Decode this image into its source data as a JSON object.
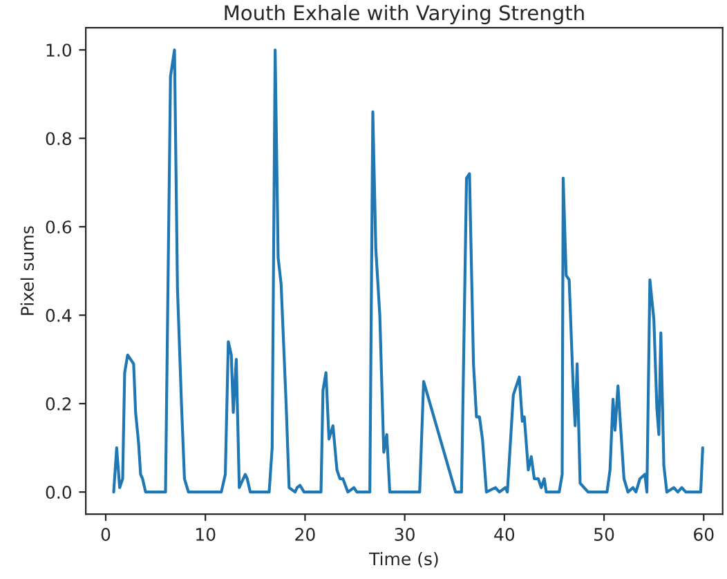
{
  "chart_data": {
    "type": "line",
    "title": "Mouth Exhale with Varying Strength",
    "xlabel": "Time (s)",
    "ylabel": "Pixel sums",
    "series": [
      {
        "color": "#1f77b4",
        "x": [
          0.8,
          1.1,
          1.4,
          1.7,
          1.9,
          2.2,
          2.5,
          2.8,
          3.0,
          3.3,
          3.5,
          3.7,
          4.0,
          6.0,
          6.5,
          6.9,
          7.2,
          7.6,
          7.9,
          8.3,
          10.2,
          11.6,
          12.0,
          12.3,
          12.6,
          12.8,
          13.1,
          13.4,
          14.0,
          14.2,
          14.5,
          16.4,
          16.7,
          17.0,
          17.3,
          17.6,
          18.1,
          18.4,
          19.0,
          19.2,
          19.5,
          19.9,
          21.6,
          21.8,
          22.1,
          22.4,
          22.8,
          23.2,
          23.5,
          23.8,
          24.3,
          24.9,
          25.2,
          26.5,
          26.8,
          27.1,
          27.5,
          27.9,
          28.2,
          28.5,
          31.5,
          31.9,
          35.1,
          35.7,
          36.2,
          36.5,
          36.9,
          37.2,
          37.5,
          37.8,
          38.2,
          39.1,
          39.5,
          40.1,
          40.3,
          40.9,
          41.5,
          41.8,
          42.0,
          42.4,
          42.7,
          43.0,
          43.4,
          43.7,
          44.0,
          44.2,
          45.5,
          45.8,
          45.9,
          46.2,
          46.5,
          46.9,
          47.1,
          47.3,
          47.6,
          48.0,
          48.4,
          50.3,
          50.6,
          50.9,
          51.1,
          51.4,
          52.0,
          52.4,
          52.9,
          53.2,
          53.6,
          54.1,
          54.3,
          54.6,
          55.0,
          55.3,
          55.5,
          55.7,
          56.0,
          56.3,
          57.0,
          57.4,
          57.8,
          58.2,
          59.7,
          59.9
        ],
        "values": [
          0.0,
          0.1,
          0.01,
          0.03,
          0.27,
          0.31,
          0.3,
          0.29,
          0.18,
          0.11,
          0.04,
          0.03,
          0.0,
          0.0,
          0.94,
          1.0,
          0.46,
          0.2,
          0.03,
          0.0,
          0.0,
          0.0,
          0.04,
          0.34,
          0.31,
          0.18,
          0.3,
          0.01,
          0.04,
          0.03,
          0.0,
          0.0,
          0.1,
          1.0,
          0.53,
          0.47,
          0.2,
          0.01,
          0.0,
          0.01,
          0.015,
          0.0,
          0.0,
          0.23,
          0.27,
          0.12,
          0.15,
          0.05,
          0.03,
          0.03,
          0.0,
          0.01,
          0.0,
          0.0,
          0.86,
          0.55,
          0.4,
          0.09,
          0.13,
          0.0,
          0.0,
          0.25,
          0.0,
          0.0,
          0.71,
          0.72,
          0.29,
          0.17,
          0.17,
          0.12,
          0.0,
          0.01,
          0.0,
          0.01,
          0.0,
          0.22,
          0.26,
          0.16,
          0.17,
          0.05,
          0.08,
          0.03,
          0.03,
          0.01,
          0.03,
          0.0,
          0.0,
          0.04,
          0.71,
          0.49,
          0.48,
          0.24,
          0.15,
          0.29,
          0.02,
          0.01,
          0.0,
          0.0,
          0.05,
          0.21,
          0.14,
          0.24,
          0.03,
          0.0,
          0.01,
          0.0,
          0.03,
          0.04,
          0.0,
          0.48,
          0.39,
          0.19,
          0.13,
          0.36,
          0.06,
          0.0,
          0.01,
          0.0,
          0.01,
          0.0,
          0.0,
          0.1
        ]
      }
    ],
    "xlim": [
      -2,
      61.9
    ],
    "ylim": [
      -0.05,
      1.05
    ],
    "xticks": [
      0,
      10,
      20,
      30,
      40,
      50,
      60
    ],
    "yticks": [
      {
        "value": 0,
        "label": "0.0"
      },
      {
        "value": 0.2,
        "label": "0.2"
      },
      {
        "value": 0.4,
        "label": "0.4"
      },
      {
        "value": 0.6,
        "label": "0.6"
      },
      {
        "value": 0.8,
        "label": "0.8"
      },
      {
        "value": 1,
        "label": "1.0"
      }
    ],
    "grid": false
  }
}
